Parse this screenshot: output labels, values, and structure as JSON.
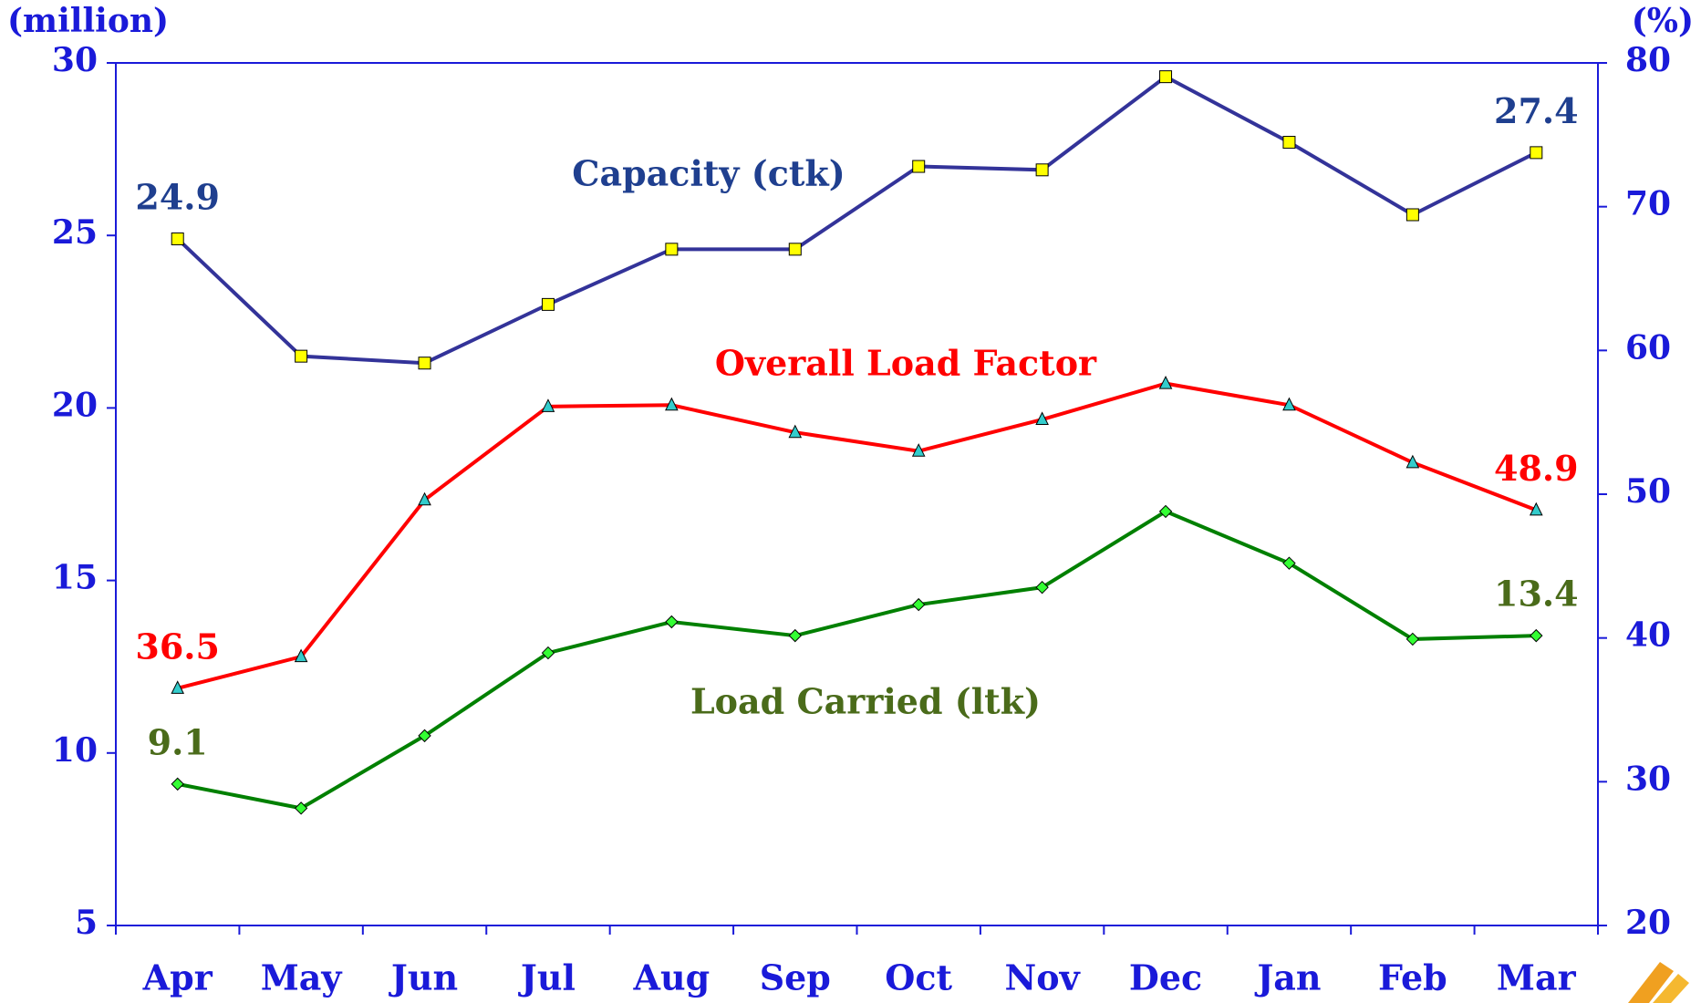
{
  "chart_data": {
    "type": "line",
    "y_axis_label": "(million)",
    "y2_axis_label": "(%)",
    "categories": [
      "Apr",
      "May",
      "Jun",
      "Jul",
      "Aug",
      "Sep",
      "Oct",
      "Nov",
      "Dec",
      "Jan",
      "Feb",
      "Mar"
    ],
    "series": [
      {
        "name": "Capacity (ctk)",
        "color": "#333399",
        "label_color": "#1f3f8f",
        "marker": "square",
        "marker_color": "#ffff00",
        "axis": "y",
        "values": [
          24.9,
          21.5,
          21.3,
          23.0,
          24.6,
          24.6,
          27.0,
          26.9,
          29.6,
          27.7,
          25.6,
          27.4
        ]
      },
      {
        "name": "Overall Load Factor",
        "color": "#ff0000",
        "label_color": "#ff0000",
        "marker": "triangle",
        "marker_color": "#33cccc",
        "axis": "y2",
        "values": [
          36.5,
          38.7,
          49.6,
          56.1,
          56.2,
          54.3,
          53.0,
          55.2,
          57.7,
          56.2,
          52.2,
          48.9
        ]
      },
      {
        "name": "Load Carried (ltk)",
        "color": "#008000",
        "label_color": "#4a6b1a",
        "marker": "diamond",
        "marker_color": "#33ff33",
        "axis": "y",
        "values": [
          9.1,
          8.4,
          10.5,
          12.9,
          13.8,
          13.4,
          14.3,
          14.8,
          17.0,
          15.5,
          13.3,
          13.4
        ]
      }
    ],
    "ylim": [
      5,
      30
    ],
    "yticks": [
      5,
      10,
      15,
      20,
      25,
      30
    ],
    "y2lim": [
      20,
      80
    ],
    "y2ticks": [
      20,
      30,
      40,
      50,
      60,
      70,
      80
    ],
    "axis_color": "#1a1ad9",
    "grid": false
  }
}
